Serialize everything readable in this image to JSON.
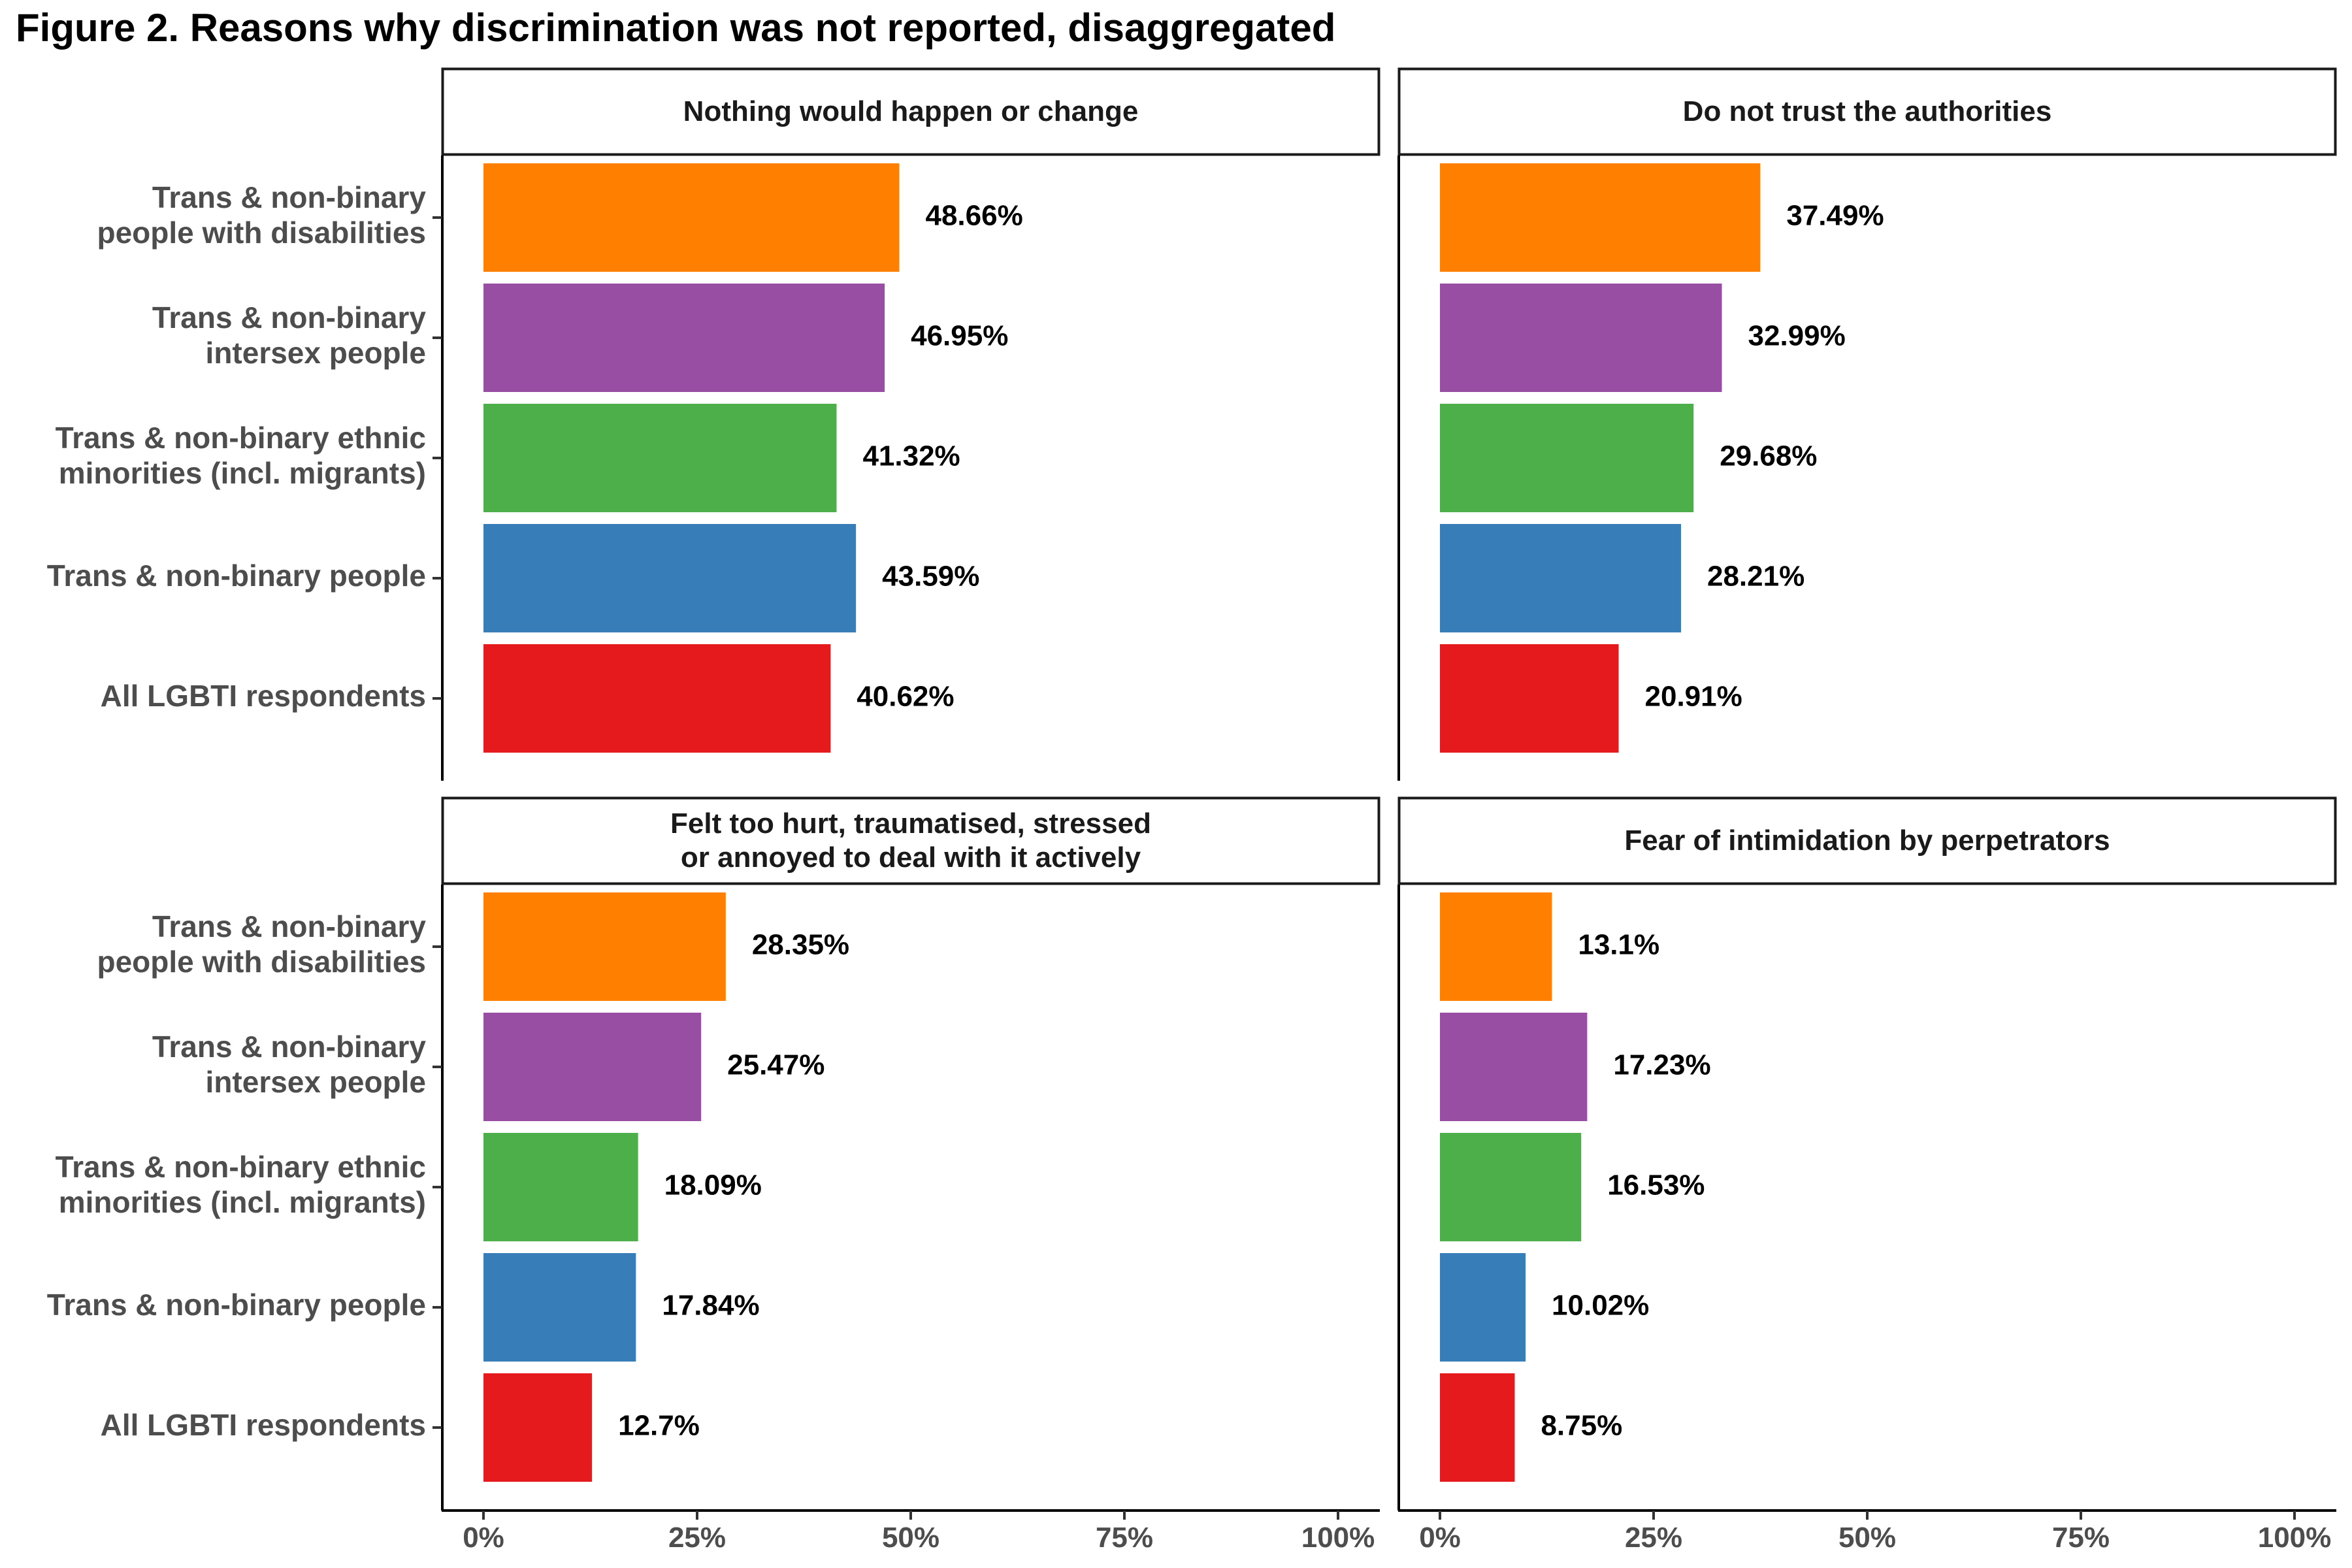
{
  "title": "Figure 2. Reasons why discrimination was not reported, disaggregated",
  "chart_data": {
    "type": "bar",
    "orientation": "horizontal",
    "layout": "facet-2x2",
    "categories": [
      "Trans & non-binary\npeople with disabilities",
      "Trans & non-binary\nintersex people",
      "Trans & non-binary ethnic\nminorities (incl. migrants)",
      "Trans & non-binary people",
      "All LGBTI respondents"
    ],
    "colors": [
      "#FF7F00",
      "#984EA3",
      "#4DAF4A",
      "#377EB8",
      "#E41A1C"
    ],
    "x_ticks": [
      "0%",
      "25%",
      "50%",
      "75%",
      "100%"
    ],
    "xlim": [
      0,
      100
    ],
    "facets": [
      {
        "title": "Nothing would happen or change",
        "values": [
          48.66,
          46.95,
          41.32,
          43.59,
          40.62
        ],
        "labels": [
          "48.66%",
          "46.95%",
          "41.32%",
          "43.59%",
          "40.62%"
        ]
      },
      {
        "title": "Do not trust the authorities",
        "values": [
          37.49,
          32.99,
          29.68,
          28.21,
          20.91
        ],
        "labels": [
          "37.49%",
          "32.99%",
          "29.68%",
          "28.21%",
          "20.91%"
        ]
      },
      {
        "title": "Felt too hurt, traumatised, stressed\nor annoyed to deal with it actively",
        "values": [
          28.35,
          25.47,
          18.09,
          17.84,
          12.7
        ],
        "labels": [
          "28.35%",
          "25.47%",
          "18.09%",
          "17.84%",
          "12.7%"
        ]
      },
      {
        "title": "Fear of intimidation by perpetrators",
        "values": [
          13.1,
          17.23,
          16.53,
          10.02,
          8.75
        ],
        "labels": [
          "13.1%",
          "17.23%",
          "16.53%",
          "10.02%",
          "8.75%"
        ]
      }
    ]
  }
}
